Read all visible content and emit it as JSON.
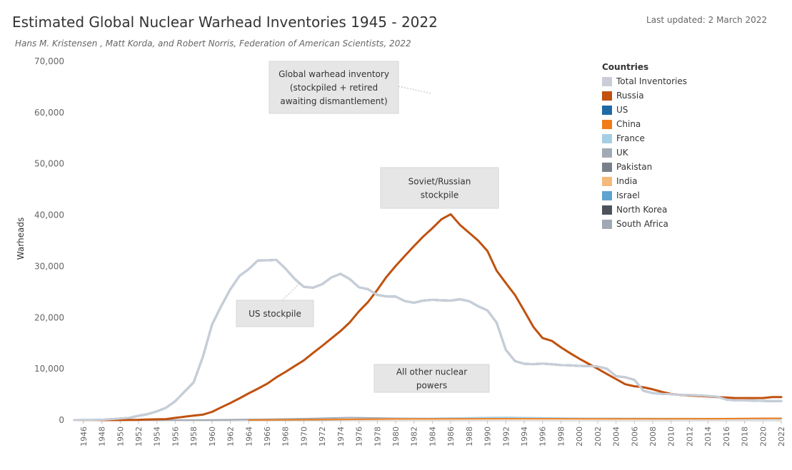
{
  "header": {
    "title": "Estimated Global Nuclear Warhead Inventories 1945 - 2022",
    "subtitle": "Hans M. Kristensen , Matt Korda, and Robert Norris, Federation of American Scientists, 2022",
    "updated": "Last updated: 2 March 2022"
  },
  "legend": {
    "title": "Countries",
    "items": [
      {
        "label": "Total  Inventories",
        "color": "#c9ced6"
      },
      {
        "label": "Russia",
        "color": "#c0510f"
      },
      {
        "label": "US",
        "color": "#1f6aa5"
      },
      {
        "label": "China",
        "color": "#f07d1a"
      },
      {
        "label": "France",
        "color": "#a6cee3"
      },
      {
        "label": "UK",
        "color": "#a2aab5"
      },
      {
        "label": "Pakistan",
        "color": "#7a8089"
      },
      {
        "label": "India",
        "color": "#f5b97a"
      },
      {
        "label": "Israel",
        "color": "#5ea3d0"
      },
      {
        "label": "North  Korea",
        "color": "#4d535c"
      },
      {
        "label": "South Africa",
        "color": "#a0a8b3"
      }
    ]
  },
  "chart_data": {
    "type": "line",
    "ylabel": "Warheads",
    "xlabel": "",
    "xlim": [
      1945,
      2022
    ],
    "ylim": [
      0,
      70000
    ],
    "y_ticks": [
      0,
      10000,
      20000,
      30000,
      40000,
      50000,
      60000,
      70000
    ],
    "y_tick_labels": [
      "0",
      "10,000",
      "20,000",
      "30,000",
      "40,000",
      "50,000",
      "60,000",
      "70,000"
    ],
    "x_ticks": [
      1946,
      1948,
      1950,
      1952,
      1954,
      1956,
      1958,
      1960,
      1962,
      1964,
      1966,
      1968,
      1970,
      1972,
      1974,
      1976,
      1978,
      1980,
      1982,
      1984,
      1986,
      1988,
      1990,
      1992,
      1994,
      1996,
      1998,
      2000,
      2002,
      2004,
      2006,
      2008,
      2010,
      2012,
      2014,
      2016,
      2018,
      2020,
      2022
    ],
    "grid": false,
    "legend_position": "right",
    "series": [
      {
        "name": "Total  Inventories",
        "color": "#c9ced6",
        "x": [
          1945,
          1946,
          1947,
          1948,
          1949,
          1950,
          1951,
          1952,
          1953,
          1954,
          1955,
          1956,
          1957,
          1958,
          1959,
          1960,
          1961,
          1962,
          1963,
          1964,
          1965,
          1966,
          1967,
          1968,
          1969,
          1970,
          1971,
          1972,
          1973,
          1974,
          1975,
          1976,
          1977,
          1978,
          1979,
          1980,
          1981,
          1982,
          1983,
          1984,
          1985,
          1986,
          1987,
          1988,
          1989,
          1990,
          1991,
          1992,
          1993,
          1994,
          1995,
          1996,
          1997,
          1998,
          1999,
          2000,
          2001,
          2002,
          2003,
          2004,
          2005,
          2006,
          2007,
          2008,
          2009,
          2010,
          2011,
          2012,
          2013,
          2014,
          2015,
          2016,
          2017,
          2018,
          2019,
          2020,
          2021,
          2022
        ],
        "values": [
          2,
          9,
          13,
          50,
          170,
          304,
          439,
          841,
          1169,
          1703,
          2422,
          3692,
          5543,
          7345,
          12298,
          18638,
          22229,
          25540,
          28133,
          29463,
          31139,
          31175,
          31255,
          29561,
          27552,
          26008,
          25830,
          26516,
          27835,
          28537,
          27519,
          25914,
          25542,
          24418,
          24138,
          24104,
          23208,
          22886,
          23305,
          23459,
          23368,
          23317,
          23575,
          23205,
          22217,
          21392,
          19008,
          13708,
          11511,
          10979,
          10904,
          11011,
          10903,
          10732,
          10685,
          10577,
          10526,
          10457,
          10027,
          8570,
          8360,
          7853,
          5709,
          5273,
          5113,
          5066,
          4897,
          4881,
          4804,
          4717,
          4571,
          4018,
          3822,
          3822,
          3785,
          3750,
          3708,
          3708
        ]
      },
      {
        "name": "Russia",
        "color": "#c0510f",
        "x": [
          1945,
          1946,
          1947,
          1948,
          1949,
          1950,
          1951,
          1952,
          1953,
          1954,
          1955,
          1956,
          1957,
          1958,
          1959,
          1960,
          1961,
          1962,
          1963,
          1964,
          1965,
          1966,
          1967,
          1968,
          1969,
          1970,
          1971,
          1972,
          1973,
          1974,
          1975,
          1976,
          1977,
          1978,
          1979,
          1980,
          1981,
          1982,
          1983,
          1984,
          1985,
          1986,
          1987,
          1988,
          1989,
          1990,
          1991,
          1992,
          1993,
          1994,
          1995,
          1996,
          1997,
          1998,
          1999,
          2000,
          2001,
          2002,
          2003,
          2004,
          2005,
          2006,
          2007,
          2008,
          2009,
          2010,
          2011,
          2012,
          2013,
          2014,
          2015,
          2016,
          2017,
          2018,
          2019,
          2020,
          2021,
          2022
        ],
        "values": [
          0,
          0,
          0,
          0,
          1,
          5,
          25,
          50,
          120,
          150,
          200,
          426,
          660,
          869,
          1060,
          1605,
          2471,
          3322,
          4238,
          5221,
          6129,
          7089,
          8339,
          9399,
          10538,
          11643,
          13092,
          14478,
          15915,
          17385,
          19055,
          21205,
          23044,
          25393,
          27935,
          30062,
          32049,
          33952,
          35804,
          37431,
          39197,
          40159,
          38107,
          36538,
          35000,
          32980,
          29154,
          26734,
          24403,
          21339,
          18179,
          16010,
          15467,
          14200,
          13053,
          11989,
          11000,
          10000,
          9000,
          8000,
          7000,
          6600,
          6400,
          6000,
          5500,
          5100,
          4900,
          4800,
          4700,
          4600,
          4500,
          4400,
          4300,
          4300,
          4300,
          4300,
          4500,
          4477
        ]
      },
      {
        "name": "US",
        "color": "#1f6aa5",
        "x": [
          1945,
          1946,
          1947,
          1948,
          1949,
          1950,
          1951,
          1952,
          1953,
          1954,
          1955,
          1956,
          1957,
          1958,
          1959,
          1960,
          1961,
          1962,
          1963,
          1964,
          1965,
          1966,
          1967,
          1968,
          1969,
          1970,
          1971,
          1972,
          1973,
          1974,
          1975,
          1976,
          1977,
          1978,
          1979,
          1980,
          1981,
          1982,
          1983,
          1984,
          1985,
          1986,
          1987,
          1988,
          1989,
          1990,
          1991,
          1992,
          1993,
          1994,
          1995,
          1996,
          1997,
          1998,
          1999,
          2000,
          2001,
          2002,
          2003,
          2004,
          2005,
          2006,
          2007,
          2008,
          2009,
          2010,
          2011,
          2012,
          2013,
          2014,
          2015,
          2016,
          2017,
          2018,
          2019,
          2020,
          2021,
          2022
        ],
        "values": [
          2,
          9,
          13,
          50,
          170,
          299,
          438,
          841,
          1169,
          1703,
          2422,
          3692,
          5543,
          7345,
          12298,
          18638,
          22229,
          25540,
          28133,
          29463,
          31139,
          31175,
          31255,
          29561,
          27552,
          26008,
          25830,
          26516,
          27835,
          28537,
          27519,
          25914,
          25542,
          24418,
          24138,
          24104,
          23208,
          22886,
          23305,
          23459,
          23368,
          23317,
          23575,
          23205,
          22217,
          21392,
          19008,
          13708,
          11511,
          10979,
          10904,
          11011,
          10903,
          10732,
          10685,
          10577,
          10526,
          10457,
          10027,
          8570,
          8360,
          7853,
          5709,
          5273,
          5113,
          5066,
          4897,
          4881,
          4804,
          4717,
          4571,
          4018,
          3822,
          3822,
          3785,
          3750,
          3708,
          3708
        ]
      },
      {
        "name": "China",
        "color": "#f07d1a",
        "x": [
          1964,
          1970,
          1980,
          1990,
          2000,
          2010,
          2015,
          2020,
          2022
        ],
        "values": [
          1,
          75,
          205,
          232,
          232,
          240,
          260,
          350,
          350
        ]
      },
      {
        "name": "France",
        "color": "#a6cee3",
        "x": [
          1964,
          1970,
          1980,
          1990,
          1992,
          2000,
          2010,
          2022
        ],
        "values": [
          4,
          36,
          250,
          505,
          540,
          350,
          300,
          290
        ]
      },
      {
        "name": "UK",
        "color": "#a2aab5",
        "x": [
          1953,
          1960,
          1970,
          1975,
          1980,
          1990,
          2000,
          2010,
          2022
        ],
        "values": [
          1,
          30,
          280,
          492,
          350,
          300,
          280,
          225,
          225
        ]
      }
    ]
  },
  "annotations": [
    {
      "lines": [
        "Global warhead inventory",
        "(stockpiled + retired",
        "awaiting dismantlement)"
      ]
    },
    {
      "lines": [
        "Soviet/Russian",
        "stockpile"
      ]
    },
    {
      "lines": [
        "US stockpile"
      ]
    },
    {
      "lines": [
        "All other nuclear",
        "powers"
      ]
    }
  ]
}
